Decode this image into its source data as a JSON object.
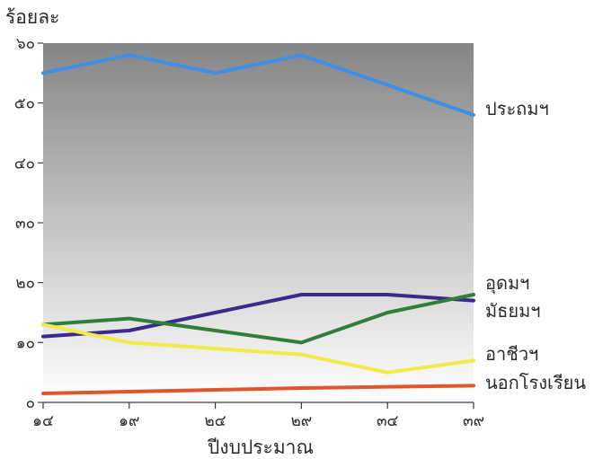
{
  "chart_data": {
    "type": "line",
    "ylabel": "ร้อยละ",
    "xlabel": "ปีงบประมาณ",
    "x": [
      14,
      19,
      24,
      29,
      34,
      39
    ],
    "x_tick_labels": [
      "๑๔",
      "๑๙",
      "๒๔",
      "๒๙",
      "๓๔",
      "๓๙"
    ],
    "y_ticks": [
      0,
      10,
      20,
      30,
      40,
      50,
      60
    ],
    "y_tick_labels": [
      "๐",
      "๑๐",
      "๒๐",
      "๓๐",
      "๔๐",
      "๕๐",
      "๖๐"
    ],
    "ylim": [
      0,
      60
    ],
    "grid": false,
    "plot_background": "gradient dark gray (top) to white (bottom)",
    "series": [
      {
        "name": "ประถมฯ",
        "color": "#3e8fe6",
        "values": [
          55,
          58,
          55,
          58,
          53,
          48
        ]
      },
      {
        "name": "อุดมฯ",
        "color": "#3a2a8a",
        "values": [
          11,
          12,
          15,
          18,
          18,
          17
        ]
      },
      {
        "name": "มัธยมฯ",
        "color": "#2f7f3a",
        "values": [
          13,
          14,
          12,
          10,
          15,
          18
        ]
      },
      {
        "name": "อาชีวฯ",
        "color": "#f2ea4a",
        "values": [
          13,
          10,
          9,
          8,
          5,
          7
        ]
      },
      {
        "name": "นอกโรงเรียน",
        "color": "#e0552a",
        "values": [
          1.5,
          1.8,
          2.1,
          2.4,
          2.6,
          2.8
        ]
      }
    ]
  }
}
